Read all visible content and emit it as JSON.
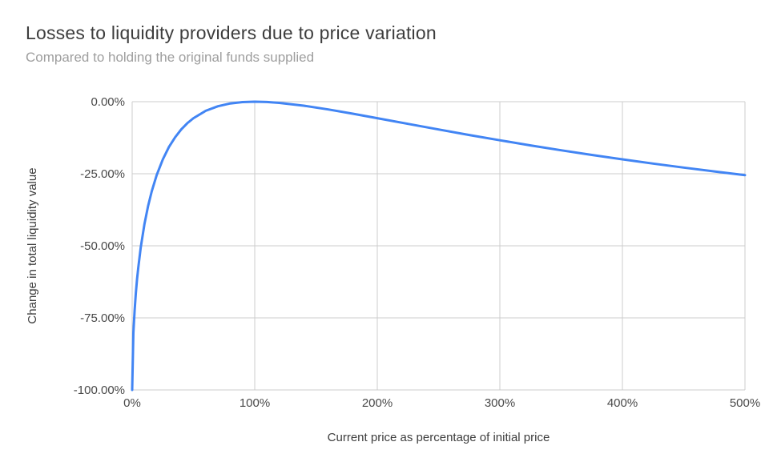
{
  "chart_data": {
    "type": "line",
    "title": "Losses to liquidity providers due to price variation",
    "subtitle": "Compared to holding the original funds supplied",
    "xlabel": "Current price as percentage of initial price",
    "ylabel": "Change in total liquidity value",
    "xlim": [
      0,
      500
    ],
    "ylim": [
      -100,
      0
    ],
    "grid": true,
    "legend": "none",
    "grid_color": "#cccccc",
    "line_color": "#4285f4",
    "x_ticks": [
      {
        "value": 0,
        "label": "0%"
      },
      {
        "value": 100,
        "label": "100%"
      },
      {
        "value": 200,
        "label": "200%"
      },
      {
        "value": 300,
        "label": "300%"
      },
      {
        "value": 400,
        "label": "400%"
      },
      {
        "value": 500,
        "label": "500%"
      }
    ],
    "y_ticks": [
      {
        "value": 0,
        "label": "0.00%"
      },
      {
        "value": -25,
        "label": "-25.00%"
      },
      {
        "value": -50,
        "label": "-50.00%"
      },
      {
        "value": -75,
        "label": "-75.00%"
      },
      {
        "value": -100,
        "label": "-100.00%"
      }
    ],
    "series": [
      {
        "name": "Change in total liquidity value",
        "points": [
          [
            0,
            -100
          ],
          [
            1,
            -80.2
          ],
          [
            2,
            -72.27
          ],
          [
            3,
            -66.37
          ],
          [
            4,
            -61.54
          ],
          [
            5,
            -57.41
          ],
          [
            7,
            -50.55
          ],
          [
            10,
            -42.5
          ],
          [
            13,
            -36.18
          ],
          [
            16,
            -31.03
          ],
          [
            20,
            -25.46
          ],
          [
            25,
            -20.0
          ],
          [
            30,
            -15.73
          ],
          [
            35,
            -12.35
          ],
          [
            40,
            -9.65
          ],
          [
            45,
            -7.47
          ],
          [
            50,
            -5.72
          ],
          [
            60,
            -3.18
          ],
          [
            70,
            -1.57
          ],
          [
            80,
            -0.62
          ],
          [
            90,
            -0.14
          ],
          [
            100,
            0
          ],
          [
            110,
            -0.11
          ],
          [
            120,
            -0.41
          ],
          [
            140,
            -1.4
          ],
          [
            160,
            -2.7
          ],
          [
            180,
            -4.17
          ],
          [
            200,
            -5.72
          ],
          [
            225,
            -7.69
          ],
          [
            250,
            -9.65
          ],
          [
            275,
            -11.56
          ],
          [
            300,
            -13.4
          ],
          [
            325,
            -15.16
          ],
          [
            350,
            -16.85
          ],
          [
            375,
            -18.46
          ],
          [
            400,
            -20.0
          ],
          [
            425,
            -21.46
          ],
          [
            450,
            -22.86
          ],
          [
            475,
            -24.19
          ],
          [
            500,
            -25.46
          ]
        ]
      }
    ]
  }
}
